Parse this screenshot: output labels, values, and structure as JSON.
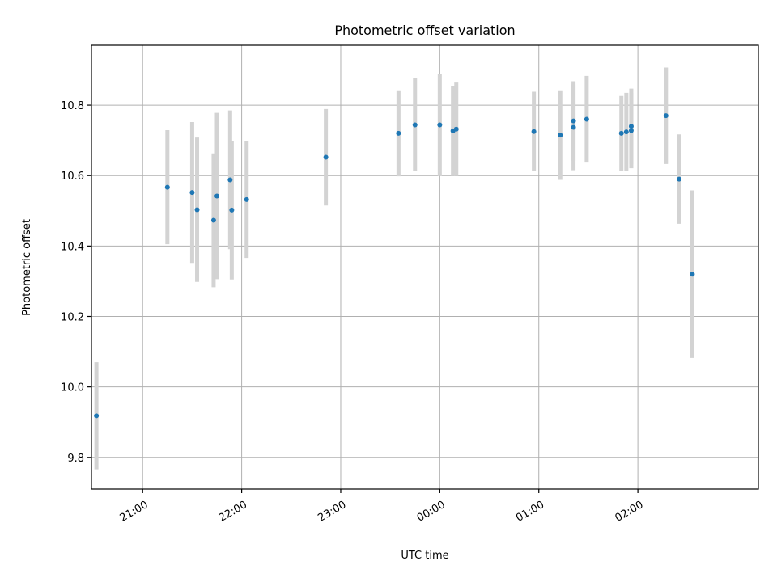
{
  "chart_data": {
    "type": "scatter",
    "title": "Photometric offset variation",
    "xlabel": "UTC time",
    "ylabel": "Photometric offset",
    "x_is_time": true,
    "x_ticks": [
      "21:00",
      "22:00",
      "23:00",
      "00:00",
      "01:00",
      "02:00"
    ],
    "y_ticks": [
      "9.8",
      "10.0",
      "10.2",
      "10.4",
      "10.6",
      "10.8"
    ],
    "xlim": [
      "20:29",
      "03:13"
    ],
    "ylim": [
      9.71,
      10.97
    ],
    "grid": true,
    "legend": "none",
    "colors": {
      "points": "#1f77b4",
      "error_bars": "#d3d3d3",
      "grid": "#b0b0b0"
    },
    "points": [
      {
        "t": "20:32",
        "y": 9.918,
        "err": 0.152
      },
      {
        "t": "21:15",
        "y": 10.567,
        "err": 0.162
      },
      {
        "t": "21:30",
        "y": 10.552,
        "err": 0.2
      },
      {
        "t": "21:33",
        "y": 10.503,
        "err": 0.205
      },
      {
        "t": "21:43",
        "y": 10.473,
        "err": 0.19
      },
      {
        "t": "21:45",
        "y": 10.542,
        "err": 0.236
      },
      {
        "t": "21:53",
        "y": 10.588,
        "err": 0.197
      },
      {
        "t": "21:54",
        "y": 10.502,
        "err": 0.197
      },
      {
        "t": "22:03",
        "y": 10.532,
        "err": 0.166
      },
      {
        "t": "22:51",
        "y": 10.652,
        "err": 0.137
      },
      {
        "t": "23:35",
        "y": 10.72,
        "err": 0.122
      },
      {
        "t": "23:45",
        "y": 10.744,
        "err": 0.132
      },
      {
        "t": "00:00",
        "y": 10.744,
        "err": 0.145
      },
      {
        "t": "00:08",
        "y": 10.727,
        "err": 0.127
      },
      {
        "t": "00:10",
        "y": 10.732,
        "err": 0.132
      },
      {
        "t": "00:57",
        "y": 10.725,
        "err": 0.113
      },
      {
        "t": "01:13",
        "y": 10.715,
        "err": 0.127
      },
      {
        "t": "01:21",
        "y": 10.755,
        "err": 0.113
      },
      {
        "t": "01:21",
        "y": 10.737,
        "err": 0.122
      },
      {
        "t": "01:29",
        "y": 10.76,
        "err": 0.123
      },
      {
        "t": "01:50",
        "y": 10.72,
        "err": 0.106
      },
      {
        "t": "01:53",
        "y": 10.724,
        "err": 0.111
      },
      {
        "t": "01:56",
        "y": 10.728,
        "err": 0.107
      },
      {
        "t": "01:56",
        "y": 10.74,
        "err": 0.107
      },
      {
        "t": "02:17",
        "y": 10.77,
        "err": 0.137
      },
      {
        "t": "02:25",
        "y": 10.59,
        "err": 0.127
      },
      {
        "t": "02:33",
        "y": 10.32,
        "err": 0.238
      }
    ]
  }
}
